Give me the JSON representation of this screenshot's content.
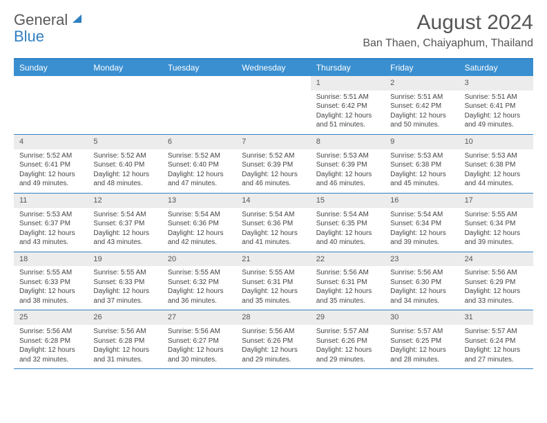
{
  "logo": {
    "text1": "General",
    "text2": "Blue"
  },
  "title": {
    "month": "August 2024",
    "location": "Ban Thaen, Chaiyaphum, Thailand"
  },
  "colors": {
    "header_bg": "#3a8fd0",
    "border": "#2f7fc2",
    "daynum_bg": "#ececec",
    "text": "#444444"
  },
  "weekdays": [
    "Sunday",
    "Monday",
    "Tuesday",
    "Wednesday",
    "Thursday",
    "Friday",
    "Saturday"
  ],
  "weeks": [
    [
      {
        "n": "",
        "sr": "",
        "ss": "",
        "dl": ""
      },
      {
        "n": "",
        "sr": "",
        "ss": "",
        "dl": ""
      },
      {
        "n": "",
        "sr": "",
        "ss": "",
        "dl": ""
      },
      {
        "n": "",
        "sr": "",
        "ss": "",
        "dl": ""
      },
      {
        "n": "1",
        "sr": "Sunrise: 5:51 AM",
        "ss": "Sunset: 6:42 PM",
        "dl": "Daylight: 12 hours and 51 minutes."
      },
      {
        "n": "2",
        "sr": "Sunrise: 5:51 AM",
        "ss": "Sunset: 6:42 PM",
        "dl": "Daylight: 12 hours and 50 minutes."
      },
      {
        "n": "3",
        "sr": "Sunrise: 5:51 AM",
        "ss": "Sunset: 6:41 PM",
        "dl": "Daylight: 12 hours and 49 minutes."
      }
    ],
    [
      {
        "n": "4",
        "sr": "Sunrise: 5:52 AM",
        "ss": "Sunset: 6:41 PM",
        "dl": "Daylight: 12 hours and 49 minutes."
      },
      {
        "n": "5",
        "sr": "Sunrise: 5:52 AM",
        "ss": "Sunset: 6:40 PM",
        "dl": "Daylight: 12 hours and 48 minutes."
      },
      {
        "n": "6",
        "sr": "Sunrise: 5:52 AM",
        "ss": "Sunset: 6:40 PM",
        "dl": "Daylight: 12 hours and 47 minutes."
      },
      {
        "n": "7",
        "sr": "Sunrise: 5:52 AM",
        "ss": "Sunset: 6:39 PM",
        "dl": "Daylight: 12 hours and 46 minutes."
      },
      {
        "n": "8",
        "sr": "Sunrise: 5:53 AM",
        "ss": "Sunset: 6:39 PM",
        "dl": "Daylight: 12 hours and 46 minutes."
      },
      {
        "n": "9",
        "sr": "Sunrise: 5:53 AM",
        "ss": "Sunset: 6:38 PM",
        "dl": "Daylight: 12 hours and 45 minutes."
      },
      {
        "n": "10",
        "sr": "Sunrise: 5:53 AM",
        "ss": "Sunset: 6:38 PM",
        "dl": "Daylight: 12 hours and 44 minutes."
      }
    ],
    [
      {
        "n": "11",
        "sr": "Sunrise: 5:53 AM",
        "ss": "Sunset: 6:37 PM",
        "dl": "Daylight: 12 hours and 43 minutes."
      },
      {
        "n": "12",
        "sr": "Sunrise: 5:54 AM",
        "ss": "Sunset: 6:37 PM",
        "dl": "Daylight: 12 hours and 43 minutes."
      },
      {
        "n": "13",
        "sr": "Sunrise: 5:54 AM",
        "ss": "Sunset: 6:36 PM",
        "dl": "Daylight: 12 hours and 42 minutes."
      },
      {
        "n": "14",
        "sr": "Sunrise: 5:54 AM",
        "ss": "Sunset: 6:36 PM",
        "dl": "Daylight: 12 hours and 41 minutes."
      },
      {
        "n": "15",
        "sr": "Sunrise: 5:54 AM",
        "ss": "Sunset: 6:35 PM",
        "dl": "Daylight: 12 hours and 40 minutes."
      },
      {
        "n": "16",
        "sr": "Sunrise: 5:54 AM",
        "ss": "Sunset: 6:34 PM",
        "dl": "Daylight: 12 hours and 39 minutes."
      },
      {
        "n": "17",
        "sr": "Sunrise: 5:55 AM",
        "ss": "Sunset: 6:34 PM",
        "dl": "Daylight: 12 hours and 39 minutes."
      }
    ],
    [
      {
        "n": "18",
        "sr": "Sunrise: 5:55 AM",
        "ss": "Sunset: 6:33 PM",
        "dl": "Daylight: 12 hours and 38 minutes."
      },
      {
        "n": "19",
        "sr": "Sunrise: 5:55 AM",
        "ss": "Sunset: 6:33 PM",
        "dl": "Daylight: 12 hours and 37 minutes."
      },
      {
        "n": "20",
        "sr": "Sunrise: 5:55 AM",
        "ss": "Sunset: 6:32 PM",
        "dl": "Daylight: 12 hours and 36 minutes."
      },
      {
        "n": "21",
        "sr": "Sunrise: 5:55 AM",
        "ss": "Sunset: 6:31 PM",
        "dl": "Daylight: 12 hours and 35 minutes."
      },
      {
        "n": "22",
        "sr": "Sunrise: 5:56 AM",
        "ss": "Sunset: 6:31 PM",
        "dl": "Daylight: 12 hours and 35 minutes."
      },
      {
        "n": "23",
        "sr": "Sunrise: 5:56 AM",
        "ss": "Sunset: 6:30 PM",
        "dl": "Daylight: 12 hours and 34 minutes."
      },
      {
        "n": "24",
        "sr": "Sunrise: 5:56 AM",
        "ss": "Sunset: 6:29 PM",
        "dl": "Daylight: 12 hours and 33 minutes."
      }
    ],
    [
      {
        "n": "25",
        "sr": "Sunrise: 5:56 AM",
        "ss": "Sunset: 6:28 PM",
        "dl": "Daylight: 12 hours and 32 minutes."
      },
      {
        "n": "26",
        "sr": "Sunrise: 5:56 AM",
        "ss": "Sunset: 6:28 PM",
        "dl": "Daylight: 12 hours and 31 minutes."
      },
      {
        "n": "27",
        "sr": "Sunrise: 5:56 AM",
        "ss": "Sunset: 6:27 PM",
        "dl": "Daylight: 12 hours and 30 minutes."
      },
      {
        "n": "28",
        "sr": "Sunrise: 5:56 AM",
        "ss": "Sunset: 6:26 PM",
        "dl": "Daylight: 12 hours and 29 minutes."
      },
      {
        "n": "29",
        "sr": "Sunrise: 5:57 AM",
        "ss": "Sunset: 6:26 PM",
        "dl": "Daylight: 12 hours and 29 minutes."
      },
      {
        "n": "30",
        "sr": "Sunrise: 5:57 AM",
        "ss": "Sunset: 6:25 PM",
        "dl": "Daylight: 12 hours and 28 minutes."
      },
      {
        "n": "31",
        "sr": "Sunrise: 5:57 AM",
        "ss": "Sunset: 6:24 PM",
        "dl": "Daylight: 12 hours and 27 minutes."
      }
    ]
  ]
}
